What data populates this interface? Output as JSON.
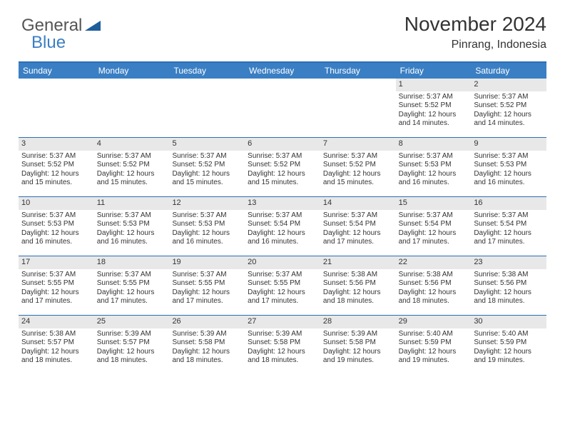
{
  "logo": {
    "word1": "General",
    "word2": "Blue",
    "tri_color": "#1f5d9c"
  },
  "header": {
    "month_title": "November 2024",
    "location": "Pinrang, Indonesia"
  },
  "colors": {
    "header_bg": "#3a7fc4",
    "header_text": "#ffffff",
    "rule": "#2b6fb5",
    "datenum_bg": "#e8e8e8",
    "text": "#333333",
    "background": "#ffffff"
  },
  "day_names": [
    "Sunday",
    "Monday",
    "Tuesday",
    "Wednesday",
    "Thursday",
    "Friday",
    "Saturday"
  ],
  "weeks": [
    [
      {
        "empty": true
      },
      {
        "empty": true
      },
      {
        "empty": true
      },
      {
        "empty": true
      },
      {
        "empty": true
      },
      {
        "date": "1",
        "sunrise": "Sunrise: 5:37 AM",
        "sunset": "Sunset: 5:52 PM",
        "daylight1": "Daylight: 12 hours",
        "daylight2": "and 14 minutes."
      },
      {
        "date": "2",
        "sunrise": "Sunrise: 5:37 AM",
        "sunset": "Sunset: 5:52 PM",
        "daylight1": "Daylight: 12 hours",
        "daylight2": "and 14 minutes."
      }
    ],
    [
      {
        "date": "3",
        "sunrise": "Sunrise: 5:37 AM",
        "sunset": "Sunset: 5:52 PM",
        "daylight1": "Daylight: 12 hours",
        "daylight2": "and 15 minutes."
      },
      {
        "date": "4",
        "sunrise": "Sunrise: 5:37 AM",
        "sunset": "Sunset: 5:52 PM",
        "daylight1": "Daylight: 12 hours",
        "daylight2": "and 15 minutes."
      },
      {
        "date": "5",
        "sunrise": "Sunrise: 5:37 AM",
        "sunset": "Sunset: 5:52 PM",
        "daylight1": "Daylight: 12 hours",
        "daylight2": "and 15 minutes."
      },
      {
        "date": "6",
        "sunrise": "Sunrise: 5:37 AM",
        "sunset": "Sunset: 5:52 PM",
        "daylight1": "Daylight: 12 hours",
        "daylight2": "and 15 minutes."
      },
      {
        "date": "7",
        "sunrise": "Sunrise: 5:37 AM",
        "sunset": "Sunset: 5:52 PM",
        "daylight1": "Daylight: 12 hours",
        "daylight2": "and 15 minutes."
      },
      {
        "date": "8",
        "sunrise": "Sunrise: 5:37 AM",
        "sunset": "Sunset: 5:53 PM",
        "daylight1": "Daylight: 12 hours",
        "daylight2": "and 16 minutes."
      },
      {
        "date": "9",
        "sunrise": "Sunrise: 5:37 AM",
        "sunset": "Sunset: 5:53 PM",
        "daylight1": "Daylight: 12 hours",
        "daylight2": "and 16 minutes."
      }
    ],
    [
      {
        "date": "10",
        "sunrise": "Sunrise: 5:37 AM",
        "sunset": "Sunset: 5:53 PM",
        "daylight1": "Daylight: 12 hours",
        "daylight2": "and 16 minutes."
      },
      {
        "date": "11",
        "sunrise": "Sunrise: 5:37 AM",
        "sunset": "Sunset: 5:53 PM",
        "daylight1": "Daylight: 12 hours",
        "daylight2": "and 16 minutes."
      },
      {
        "date": "12",
        "sunrise": "Sunrise: 5:37 AM",
        "sunset": "Sunset: 5:53 PM",
        "daylight1": "Daylight: 12 hours",
        "daylight2": "and 16 minutes."
      },
      {
        "date": "13",
        "sunrise": "Sunrise: 5:37 AM",
        "sunset": "Sunset: 5:54 PM",
        "daylight1": "Daylight: 12 hours",
        "daylight2": "and 16 minutes."
      },
      {
        "date": "14",
        "sunrise": "Sunrise: 5:37 AM",
        "sunset": "Sunset: 5:54 PM",
        "daylight1": "Daylight: 12 hours",
        "daylight2": "and 17 minutes."
      },
      {
        "date": "15",
        "sunrise": "Sunrise: 5:37 AM",
        "sunset": "Sunset: 5:54 PM",
        "daylight1": "Daylight: 12 hours",
        "daylight2": "and 17 minutes."
      },
      {
        "date": "16",
        "sunrise": "Sunrise: 5:37 AM",
        "sunset": "Sunset: 5:54 PM",
        "daylight1": "Daylight: 12 hours",
        "daylight2": "and 17 minutes."
      }
    ],
    [
      {
        "date": "17",
        "sunrise": "Sunrise: 5:37 AM",
        "sunset": "Sunset: 5:55 PM",
        "daylight1": "Daylight: 12 hours",
        "daylight2": "and 17 minutes."
      },
      {
        "date": "18",
        "sunrise": "Sunrise: 5:37 AM",
        "sunset": "Sunset: 5:55 PM",
        "daylight1": "Daylight: 12 hours",
        "daylight2": "and 17 minutes."
      },
      {
        "date": "19",
        "sunrise": "Sunrise: 5:37 AM",
        "sunset": "Sunset: 5:55 PM",
        "daylight1": "Daylight: 12 hours",
        "daylight2": "and 17 minutes."
      },
      {
        "date": "20",
        "sunrise": "Sunrise: 5:37 AM",
        "sunset": "Sunset: 5:55 PM",
        "daylight1": "Daylight: 12 hours",
        "daylight2": "and 17 minutes."
      },
      {
        "date": "21",
        "sunrise": "Sunrise: 5:38 AM",
        "sunset": "Sunset: 5:56 PM",
        "daylight1": "Daylight: 12 hours",
        "daylight2": "and 18 minutes."
      },
      {
        "date": "22",
        "sunrise": "Sunrise: 5:38 AM",
        "sunset": "Sunset: 5:56 PM",
        "daylight1": "Daylight: 12 hours",
        "daylight2": "and 18 minutes."
      },
      {
        "date": "23",
        "sunrise": "Sunrise: 5:38 AM",
        "sunset": "Sunset: 5:56 PM",
        "daylight1": "Daylight: 12 hours",
        "daylight2": "and 18 minutes."
      }
    ],
    [
      {
        "date": "24",
        "sunrise": "Sunrise: 5:38 AM",
        "sunset": "Sunset: 5:57 PM",
        "daylight1": "Daylight: 12 hours",
        "daylight2": "and 18 minutes."
      },
      {
        "date": "25",
        "sunrise": "Sunrise: 5:39 AM",
        "sunset": "Sunset: 5:57 PM",
        "daylight1": "Daylight: 12 hours",
        "daylight2": "and 18 minutes."
      },
      {
        "date": "26",
        "sunrise": "Sunrise: 5:39 AM",
        "sunset": "Sunset: 5:58 PM",
        "daylight1": "Daylight: 12 hours",
        "daylight2": "and 18 minutes."
      },
      {
        "date": "27",
        "sunrise": "Sunrise: 5:39 AM",
        "sunset": "Sunset: 5:58 PM",
        "daylight1": "Daylight: 12 hours",
        "daylight2": "and 18 minutes."
      },
      {
        "date": "28",
        "sunrise": "Sunrise: 5:39 AM",
        "sunset": "Sunset: 5:58 PM",
        "daylight1": "Daylight: 12 hours",
        "daylight2": "and 19 minutes."
      },
      {
        "date": "29",
        "sunrise": "Sunrise: 5:40 AM",
        "sunset": "Sunset: 5:59 PM",
        "daylight1": "Daylight: 12 hours",
        "daylight2": "and 19 minutes."
      },
      {
        "date": "30",
        "sunrise": "Sunrise: 5:40 AM",
        "sunset": "Sunset: 5:59 PM",
        "daylight1": "Daylight: 12 hours",
        "daylight2": "and 19 minutes."
      }
    ]
  ]
}
